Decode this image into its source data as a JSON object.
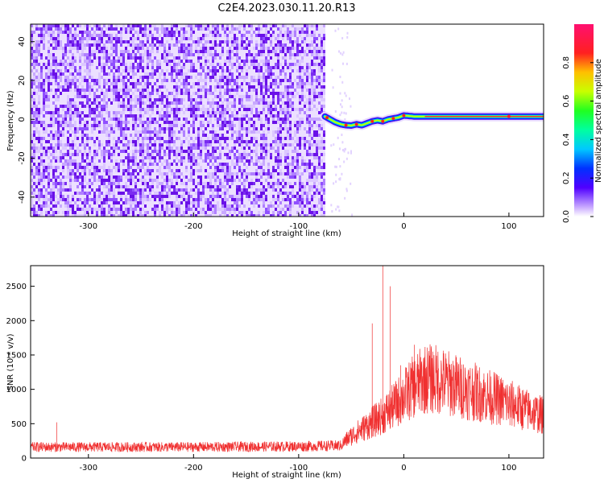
{
  "title": "C2E4.2023.030.11.20.R13",
  "chart_data": [
    {
      "type": "heatmap",
      "xlabel": "Height of straight line (km)",
      "ylabel": "Frequency (Hz)",
      "xlim": [
        -355,
        133
      ],
      "ylim": [
        -50,
        49
      ],
      "xticks": [
        -300,
        -200,
        -100,
        0,
        100
      ],
      "yticks": [
        -40,
        -20,
        0,
        20,
        40
      ],
      "noise_region_x": [
        -355,
        -75
      ],
      "signal_trace": {
        "x": [
          -75,
          -70,
          -65,
          -60,
          -55,
          -50,
          -45,
          -40,
          -35,
          -30,
          -25,
          -20,
          -15,
          -10,
          -5,
          0,
          10,
          20,
          40,
          60,
          80,
          100,
          120,
          133
        ],
        "y": [
          1.5,
          0,
          -1.5,
          -2.5,
          -3,
          -3.2,
          -2.5,
          -3,
          -2,
          -1,
          -0.5,
          -1,
          0,
          0.5,
          1,
          2,
          1.5,
          1.5,
          1.5,
          1.5,
          1.5,
          1.5,
          1.5,
          1.5
        ]
      },
      "colorbar": {
        "label": "Normalized spectral amplitude",
        "range": [
          0,
          1
        ],
        "ticks": [
          0.0,
          0.2,
          0.4,
          0.6,
          0.8
        ]
      }
    },
    {
      "type": "line",
      "xlabel": "Height of straight line (km)",
      "ylabel": "SNR (10 * v/v)",
      "xlim": [
        -355,
        133
      ],
      "ylim": [
        0,
        2800
      ],
      "xticks": [
        -300,
        -200,
        -100,
        0,
        100
      ],
      "yticks": [
        0,
        500,
        1000,
        1500,
        2000,
        2500
      ],
      "color": "#f03030",
      "envelope": {
        "x": [
          -355,
          -300,
          -200,
          -100,
          -60,
          -55,
          -50,
          -40,
          -30,
          -20,
          -10,
          0,
          10,
          20,
          30,
          40,
          60,
          80,
          100,
          120,
          133
        ],
        "y": [
          160,
          160,
          160,
          170,
          180,
          260,
          320,
          420,
          520,
          620,
          750,
          900,
          1050,
          1150,
          1150,
          1100,
          1000,
          900,
          800,
          680,
          620
        ]
      },
      "spikes": [
        {
          "x": 10,
          "y": 1650
        },
        {
          "x": -30,
          "y": 1960
        },
        {
          "x": -20,
          "y": 2800
        },
        {
          "x": -13,
          "y": 2500
        },
        {
          "x": -3,
          "y": 1350
        },
        {
          "x": -330,
          "y": 520
        },
        {
          "x": 101,
          "y": 900
        }
      ]
    }
  ]
}
